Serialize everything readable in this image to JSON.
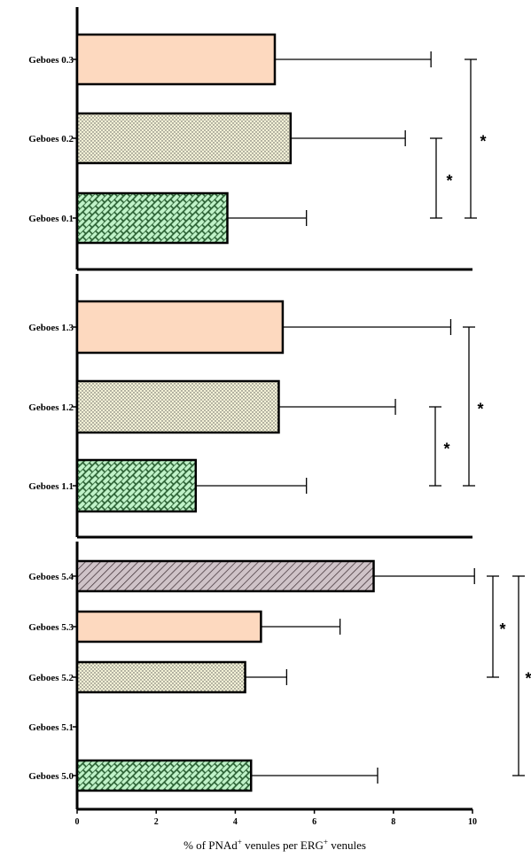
{
  "chart_data": {
    "type": "bar",
    "orientation": "horizontal",
    "xlabel_parts": [
      "% of PNAd",
      "+",
      " venules per ERG",
      "+",
      " venules"
    ],
    "xlim": [
      0,
      10
    ],
    "xticks": [
      "0",
      "2",
      "4",
      "6",
      "8",
      "10"
    ],
    "colors": {
      "peach": "#fdd9bf",
      "dotted": "#f3f1d6",
      "green": "#bff2c8",
      "hatched": "#cfc3c8"
    },
    "panels": [
      {
        "categories": [
          "Geboes 0.3",
          "Geboes 0.2",
          "Geboes 0.1"
        ],
        "values": [
          5.0,
          5.4,
          3.8
        ],
        "errors": [
          3.95,
          2.9,
          2.0
        ],
        "fills": [
          "peach",
          "dotted",
          "green"
        ],
        "significance": [
          {
            "from": "Geboes 0.2",
            "to": "Geboes 0.1",
            "label": "*"
          },
          {
            "from": "Geboes 0.3",
            "to": "Geboes 0.1",
            "label": "*"
          }
        ]
      },
      {
        "categories": [
          "Geboes 1.3",
          "Geboes 1.2",
          "Geboes 1.1"
        ],
        "values": [
          5.2,
          5.1,
          3.0
        ],
        "errors": [
          4.25,
          2.95,
          2.8
        ],
        "fills": [
          "peach",
          "dotted",
          "green"
        ],
        "significance": [
          {
            "from": "Geboes 1.2",
            "to": "Geboes 1.1",
            "label": "*"
          },
          {
            "from": "Geboes 1.3",
            "to": "Geboes 1.1",
            "label": "*"
          }
        ]
      },
      {
        "categories": [
          "Geboes 5.4",
          "Geboes 5.3",
          "Geboes 5.2",
          "Geboes 5.1",
          "Geboes 5.0"
        ],
        "values": [
          7.5,
          4.65,
          4.25,
          null,
          4.4
        ],
        "errors": [
          2.55,
          2.0,
          1.05,
          null,
          3.2
        ],
        "fills": [
          "hatched",
          "peach",
          "dotted",
          null,
          "green"
        ],
        "significance": [
          {
            "from": "Geboes 5.4",
            "to": "Geboes 5.2",
            "label": "*"
          },
          {
            "from": "Geboes 5.4",
            "to": "Geboes 5.0",
            "label": "*"
          }
        ]
      }
    ]
  }
}
